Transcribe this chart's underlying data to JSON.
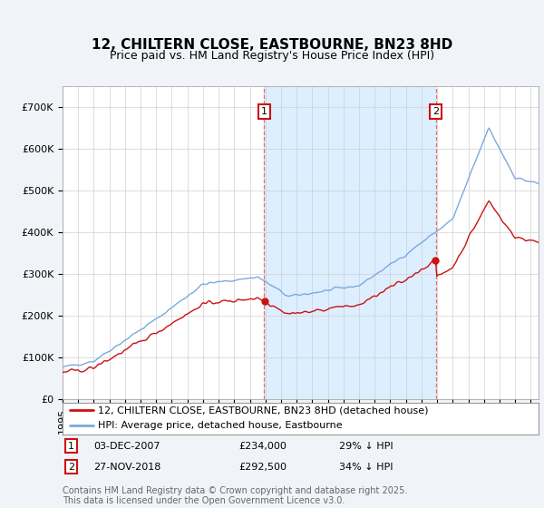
{
  "title": "12, CHILTERN CLOSE, EASTBOURNE, BN23 8HD",
  "subtitle": "Price paid vs. HM Land Registry's House Price Index (HPI)",
  "ylim": [
    0,
    750000
  ],
  "yticks": [
    0,
    100000,
    200000,
    300000,
    400000,
    500000,
    600000,
    700000
  ],
  "ytick_labels": [
    "£0",
    "£100K",
    "£200K",
    "£300K",
    "£400K",
    "£500K",
    "£600K",
    "£700K"
  ],
  "hpi_color": "#7aaadd",
  "price_color": "#cc1111",
  "vline_color": "#dd6666",
  "shade_color": "#ddeeff",
  "annotation_box_color": "#cc1111",
  "dot_color": "#cc1111",
  "purchase1_date": "03-DEC-2007",
  "purchase1_price": 234000,
  "purchase1_hpi_pct": "29%",
  "purchase2_date": "27-NOV-2018",
  "purchase2_price": 292500,
  "purchase2_hpi_pct": "34%",
  "t1": 2007.92,
  "t2": 2018.92,
  "start_year": 1995.0,
  "end_year": 2025.5,
  "legend_label_price": "12, CHILTERN CLOSE, EASTBOURNE, BN23 8HD (detached house)",
  "legend_label_hpi": "HPI: Average price, detached house, Eastbourne",
  "footnote": "Contains HM Land Registry data © Crown copyright and database right 2025.\nThis data is licensed under the Open Government Licence v3.0.",
  "background_color": "#f0f4f8",
  "plot_background": "#ffffff",
  "grid_color": "#cccccc",
  "title_fontsize": 11,
  "subtitle_fontsize": 9,
  "tick_fontsize": 8,
  "legend_fontsize": 8,
  "footnote_fontsize": 7
}
